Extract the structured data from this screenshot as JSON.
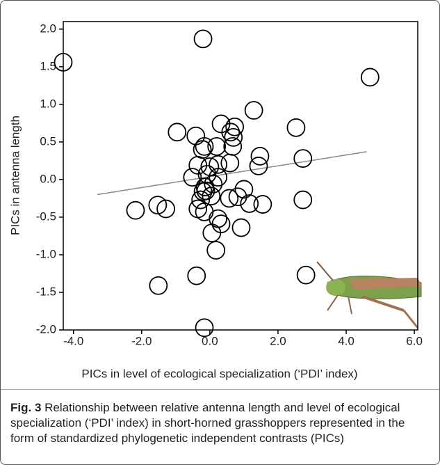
{
  "chart_data": {
    "type": "scatter",
    "xlabel": "PICs in level of ecological specialization (‘PDI’ index)",
    "ylabel": "PICs in antenna length",
    "xlim": [
      -4.3,
      6.1
    ],
    "ylim": [
      -2.0,
      2.1
    ],
    "xticks": [
      {
        "value": -4,
        "label": "-4.0"
      },
      {
        "value": -2,
        "label": "-2.0"
      },
      {
        "value": 0,
        "label": "0.0"
      },
      {
        "value": 2,
        "label": "2.0"
      },
      {
        "value": 4,
        "label": "4.0"
      },
      {
        "value": 6,
        "label": "6.0"
      }
    ],
    "yticks": [
      {
        "value": 2,
        "label": "2.0"
      },
      {
        "value": 1.5,
        "label": "1.5"
      },
      {
        "value": 1,
        "label": "1.0"
      },
      {
        "value": 0.5,
        "label": "0.5"
      },
      {
        "value": 0,
        "label": "0.0"
      },
      {
        "value": -0.5,
        "label": "-0.5"
      },
      {
        "value": -1,
        "label": "-1.0"
      },
      {
        "value": -1.5,
        "label": "-1.5"
      },
      {
        "value": -2,
        "label": "-2.0"
      }
    ],
    "color": "#000000",
    "x": [
      -4.3,
      -0.2,
      4.7,
      0.33,
      1.29,
      2.53,
      -0.96,
      -0.41,
      0.61,
      0.73,
      0.69,
      -0.16,
      -0.22,
      0.2,
      0.67,
      1.47,
      1.43,
      2.73,
      0.24,
      0.59,
      -0.35,
      0.0,
      -0.51,
      -0.08,
      0.24,
      -0.14,
      0.1,
      -0.12,
      -0.2,
      1.0,
      0.82,
      0.57,
      1.16,
      1.55,
      2.73,
      -2.18,
      -1.53,
      -1.29,
      -0.35,
      -0.16,
      0.24,
      0.33,
      0.92,
      0.06,
      0.18,
      -0.39,
      -1.51,
      2.82,
      -0.16,
      -0.27,
      0.04
    ],
    "values": [
      1.56,
      1.87,
      1.36,
      0.74,
      0.92,
      0.69,
      0.63,
      0.58,
      0.63,
      0.7,
      0.56,
      0.44,
      0.4,
      0.44,
      0.44,
      0.31,
      0.18,
      0.28,
      0.2,
      0.22,
      0.19,
      0.17,
      0.03,
      0.07,
      0.03,
      -0.1,
      -0.06,
      -0.15,
      -0.16,
      -0.13,
      -0.23,
      -0.25,
      -0.32,
      -0.33,
      -0.27,
      -0.41,
      -0.34,
      -0.39,
      -0.39,
      -0.43,
      -0.52,
      -0.59,
      -0.64,
      -0.71,
      -0.94,
      -1.28,
      -1.41,
      -1.27,
      -1.97,
      -0.27,
      -0.22
    ],
    "trend_line": {
      "x": [
        -3.3,
        4.6
      ],
      "y": [
        -0.2,
        0.37
      ],
      "color": "#888888"
    },
    "caption_label": "Fig. 3",
    "caption_text": "Relationship between relative antenna length and level of ecological specialization (‘PDI’ index) in short-horned grasshoppers represented in the form of standardized phylogenetic independent contrasts (PICs)"
  }
}
